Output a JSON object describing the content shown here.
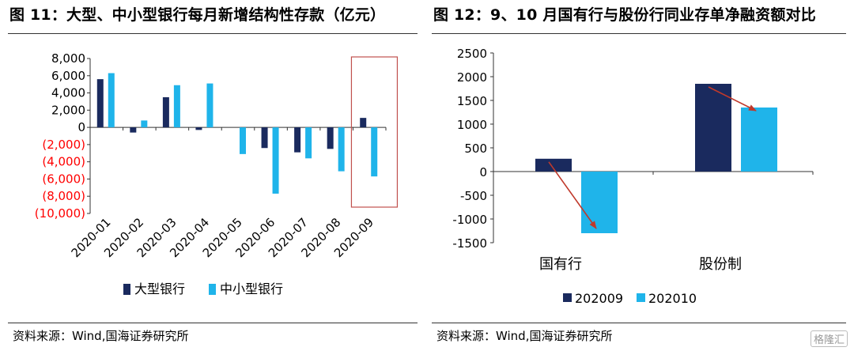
{
  "figure_left": {
    "title": "图 11：大型、中小型银行每月新增结构性存款（亿元）",
    "source": "资料来源：Wind,国海证券研究所"
  },
  "figure_right": {
    "title": "图 12：9、10 月国有行与股份行同业存单净融资额对比",
    "source": "资料来源：Wind,国海证券研究所"
  },
  "watermark": "格隆汇",
  "colors": {
    "dark": "#1a2a5e",
    "light": "#1fb4ea",
    "negative_tick": "#ff0000",
    "highlight": "#c0504d",
    "arrow": "#c0392b"
  },
  "chart_data": [
    {
      "type": "bar",
      "categories": [
        "2020-01",
        "2020-02",
        "2020-03",
        "2020-04",
        "2020-05",
        "2020-06",
        "2020-07",
        "2020-08",
        "2020-09"
      ],
      "series": [
        {
          "name": "大型银行",
          "values": [
            5600,
            -600,
            3500,
            -300,
            0,
            -2400,
            -2900,
            -2500,
            1100
          ]
        },
        {
          "name": "中小型银行",
          "values": [
            6300,
            800,
            4900,
            5100,
            -3100,
            -7700,
            -3600,
            -5100,
            -5700
          ]
        }
      ],
      "ylim": [
        -10000,
        8000
      ],
      "yticks": [
        8000,
        6000,
        4000,
        2000,
        0,
        -2000,
        -4000,
        -6000,
        -8000,
        -10000
      ],
      "ytick_labels": [
        "8,000",
        "6,000",
        "4,000",
        "2,000",
        "0",
        "(2,000)",
        "(4,000)",
        "(6,000)",
        "(8,000)",
        "(10,000)"
      ],
      "legend": "bottom",
      "highlight_category": "2020-09",
      "grid": false
    },
    {
      "type": "bar",
      "categories": [
        "国有行",
        "股份制"
      ],
      "series": [
        {
          "name": "202009",
          "values": [
            270,
            1850
          ]
        },
        {
          "name": "202010",
          "values": [
            -1300,
            1350
          ]
        }
      ],
      "ylim": [
        -1500,
        2500
      ],
      "yticks": [
        2500,
        2000,
        1500,
        1000,
        500,
        0,
        -500,
        -1000,
        -1500
      ],
      "ytick_labels": [
        "2500",
        "2000",
        "1500",
        "1000",
        "500",
        "0",
        "-500",
        "-1000",
        "-1500"
      ],
      "legend": "bottom",
      "annotations": [
        "arrow from 202009 to 202010 for each category"
      ],
      "grid": false
    }
  ]
}
